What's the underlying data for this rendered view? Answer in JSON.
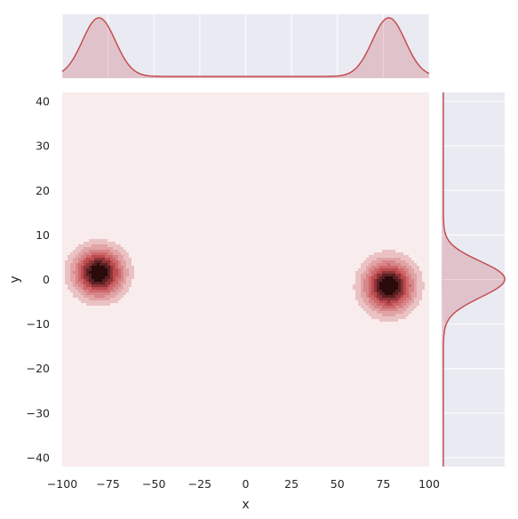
{
  "chart_data": {
    "type": "kde-joint",
    "xlabel": "x",
    "ylabel": "y",
    "xlim": [
      -100,
      100
    ],
    "ylim": [
      -42,
      42
    ],
    "x_ticks": [
      -100,
      -75,
      -50,
      -25,
      0,
      25,
      50,
      75,
      100
    ],
    "y_ticks": [
      -40,
      -30,
      -20,
      -10,
      0,
      10,
      20,
      30,
      40
    ],
    "x_tick_labels": [
      "−100",
      "−75",
      "−50",
      "−25",
      "0",
      "25",
      "50",
      "75",
      "100"
    ],
    "y_tick_labels": [
      "−40",
      "−30",
      "−20",
      "−10",
      "0",
      "10",
      "20",
      "30",
      "40"
    ],
    "grid": true,
    "clusters": [
      {
        "x": -80,
        "y": 1.5,
        "sx": 9,
        "sy": 3.6,
        "weight": 0.5
      },
      {
        "x": 78,
        "y": -1.5,
        "sx": 9,
        "sy": 3.8,
        "weight": 0.5
      }
    ],
    "contour_levels": 8,
    "colors": {
      "line": "#c44e52",
      "darkest": "#2a0a0b",
      "background": "#f9ecec",
      "margin_background": "#eaeaf2",
      "grid": "#ffffff"
    }
  }
}
